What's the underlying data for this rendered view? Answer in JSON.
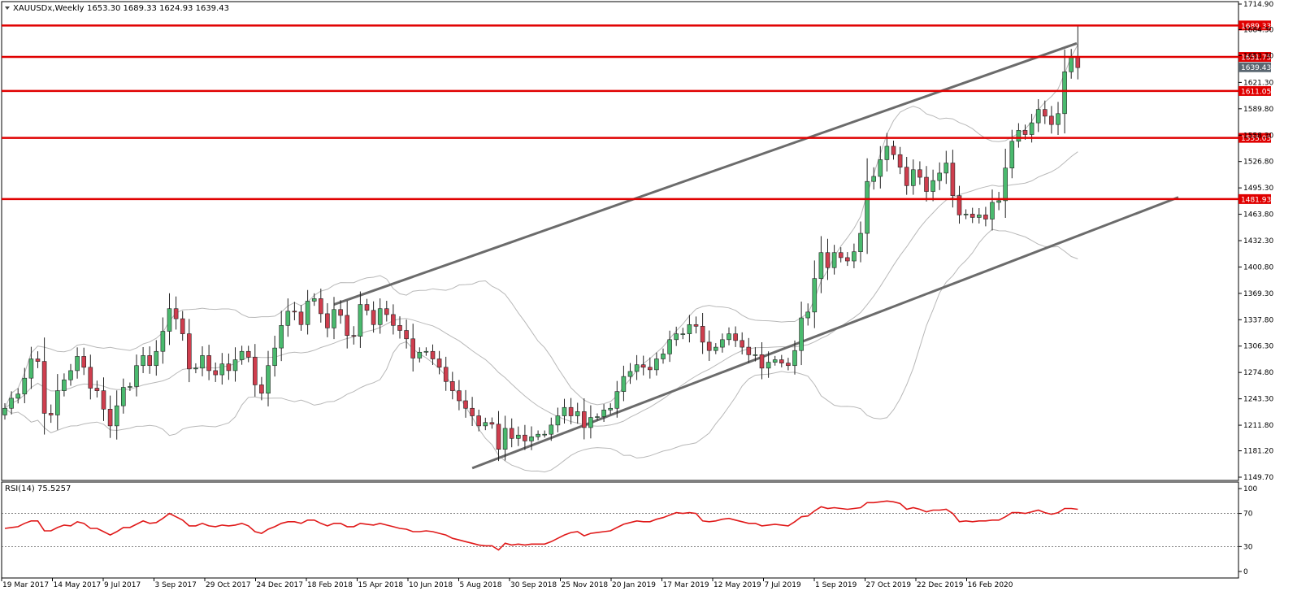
{
  "header": {
    "symbol": "XAUUSDx,Weekly",
    "ohlc": "1653.30 1689.33 1624.93 1639.43"
  },
  "rsi_panel": {
    "title": "RSI(14) 75.5257"
  },
  "colors": {
    "bull": "#4aba6e",
    "bear": "#cf3e4e",
    "level_line": "#e00000",
    "channel": "#6b6b6b",
    "bands": "#b8b8b8",
    "rsi": "#e01a1a",
    "current_price_tag": "#5a6670"
  },
  "chart_data": [
    {
      "type": "candlestick",
      "title": "XAUUSDx,Weekly",
      "y_ticks": [
        "1714.90",
        "1684.30",
        "1653.30",
        "1621.30",
        "1589.80",
        "1558.30",
        "1526.80",
        "1495.30",
        "1463.80",
        "1432.30",
        "1400.80",
        "1369.30",
        "1337.80",
        "1306.30",
        "1274.80",
        "1243.30",
        "1211.80",
        "1181.20",
        "1149.70"
      ],
      "ylim": [
        1149.7,
        1714.9
      ],
      "x_ticks": [
        "19 Mar 2017",
        "14 May 2017",
        "9 Jul 2017",
        "3 Sep 2017",
        "29 Oct 2017",
        "24 Dec 2017",
        "18 Feb 2018",
        "15 Apr 2018",
        "10 Jun 2018",
        "5 Aug 2018",
        "30 Sep 2018",
        "25 Nov 2018",
        "20 Jan 2019",
        "17 Mar 2019",
        "12 May 2019",
        "7 Jul 2019",
        "1 Sep 2019",
        "27 Oct 2019",
        "22 Dec 2019",
        "16 Feb 2020"
      ],
      "horizontal_levels": [
        {
          "price": 1689.33,
          "label": "1689.33"
        },
        {
          "price": 1651.75,
          "label": "1651.75"
        },
        {
          "price": 1611.05,
          "label": "1611.05"
        },
        {
          "price": 1555.05,
          "label": "1555.05"
        },
        {
          "price": 1481.93,
          "label": "1481.93"
        }
      ],
      "current_price": {
        "price": 1639.43,
        "label": "1639.43"
      },
      "closes": [
        1232,
        1244,
        1249,
        1268,
        1291,
        1288,
        1226,
        1224,
        1253,
        1266,
        1277,
        1294,
        1281,
        1256,
        1253,
        1231,
        1211,
        1235,
        1257,
        1258,
        1283,
        1295,
        1283,
        1300,
        1324,
        1351,
        1339,
        1321,
        1279,
        1280,
        1295,
        1277,
        1272,
        1285,
        1277,
        1290,
        1300,
        1293,
        1260,
        1250,
        1283,
        1304,
        1331,
        1348,
        1347,
        1332,
        1360,
        1363,
        1345,
        1328,
        1350,
        1343,
        1319,
        1318,
        1356,
        1349,
        1332,
        1351,
        1344,
        1331,
        1325,
        1315,
        1292,
        1299,
        1300,
        1291,
        1281,
        1264,
        1253,
        1241,
        1232,
        1223,
        1211,
        1215,
        1213,
        1183,
        1208,
        1196,
        1200,
        1193,
        1198,
        1201,
        1201,
        1212,
        1223,
        1233,
        1223,
        1228,
        1209,
        1221,
        1222,
        1230,
        1232,
        1252,
        1270,
        1276,
        1284,
        1281,
        1278,
        1291,
        1297,
        1314,
        1321,
        1321,
        1332,
        1330,
        1311,
        1301,
        1305,
        1314,
        1321,
        1313,
        1305,
        1296,
        1296,
        1280,
        1287,
        1290,
        1286,
        1283,
        1301,
        1340,
        1347,
        1387,
        1418,
        1400,
        1418,
        1412,
        1408,
        1419,
        1441,
        1503,
        1509,
        1529,
        1545,
        1535,
        1520,
        1498,
        1517,
        1508,
        1491,
        1504,
        1513,
        1525,
        1486,
        1463,
        1464,
        1460,
        1463,
        1458,
        1478,
        1480,
        1519,
        1551,
        1564,
        1559,
        1573,
        1589,
        1581,
        1571,
        1584,
        1634,
        1652,
        1639
      ],
      "rsi": [
        52,
        53,
        54,
        58,
        61,
        61,
        49,
        49,
        53,
        56,
        55,
        60,
        58,
        52,
        52,
        48,
        44,
        48,
        53,
        53,
        57,
        61,
        58,
        59,
        64,
        70,
        66,
        62,
        55,
        55,
        58,
        55,
        54,
        56,
        55,
        56,
        58,
        55,
        48,
        46,
        51,
        54,
        58,
        60,
        60,
        58,
        62,
        62,
        58,
        55,
        58,
        58,
        54,
        54,
        58,
        57,
        56,
        58,
        56,
        54,
        52,
        51,
        48,
        48,
        49,
        48,
        46,
        44,
        40,
        38,
        36,
        34,
        32,
        31,
        31,
        26,
        34,
        32,
        33,
        32,
        33,
        33,
        33,
        36,
        40,
        44,
        47,
        48,
        43,
        46,
        47,
        48,
        49,
        53,
        57,
        59,
        61,
        60,
        60,
        63,
        65,
        68,
        71,
        70,
        71,
        70,
        61,
        60,
        61,
        63,
        64,
        62,
        60,
        58,
        58,
        55,
        56,
        57,
        56,
        55,
        60,
        66,
        67,
        73,
        78,
        76,
        77,
        76,
        75,
        76,
        77,
        83,
        83,
        84,
        85,
        84,
        82,
        75,
        77,
        75,
        72,
        74,
        74,
        75,
        70,
        60,
        61,
        60,
        61,
        61,
        62,
        62,
        66,
        71,
        71,
        70,
        72,
        74,
        71,
        69,
        71,
        76,
        76,
        75
      ]
    }
  ],
  "rsi_axis": {
    "ticks": [
      "100",
      "70",
      "30",
      "0"
    ]
  }
}
